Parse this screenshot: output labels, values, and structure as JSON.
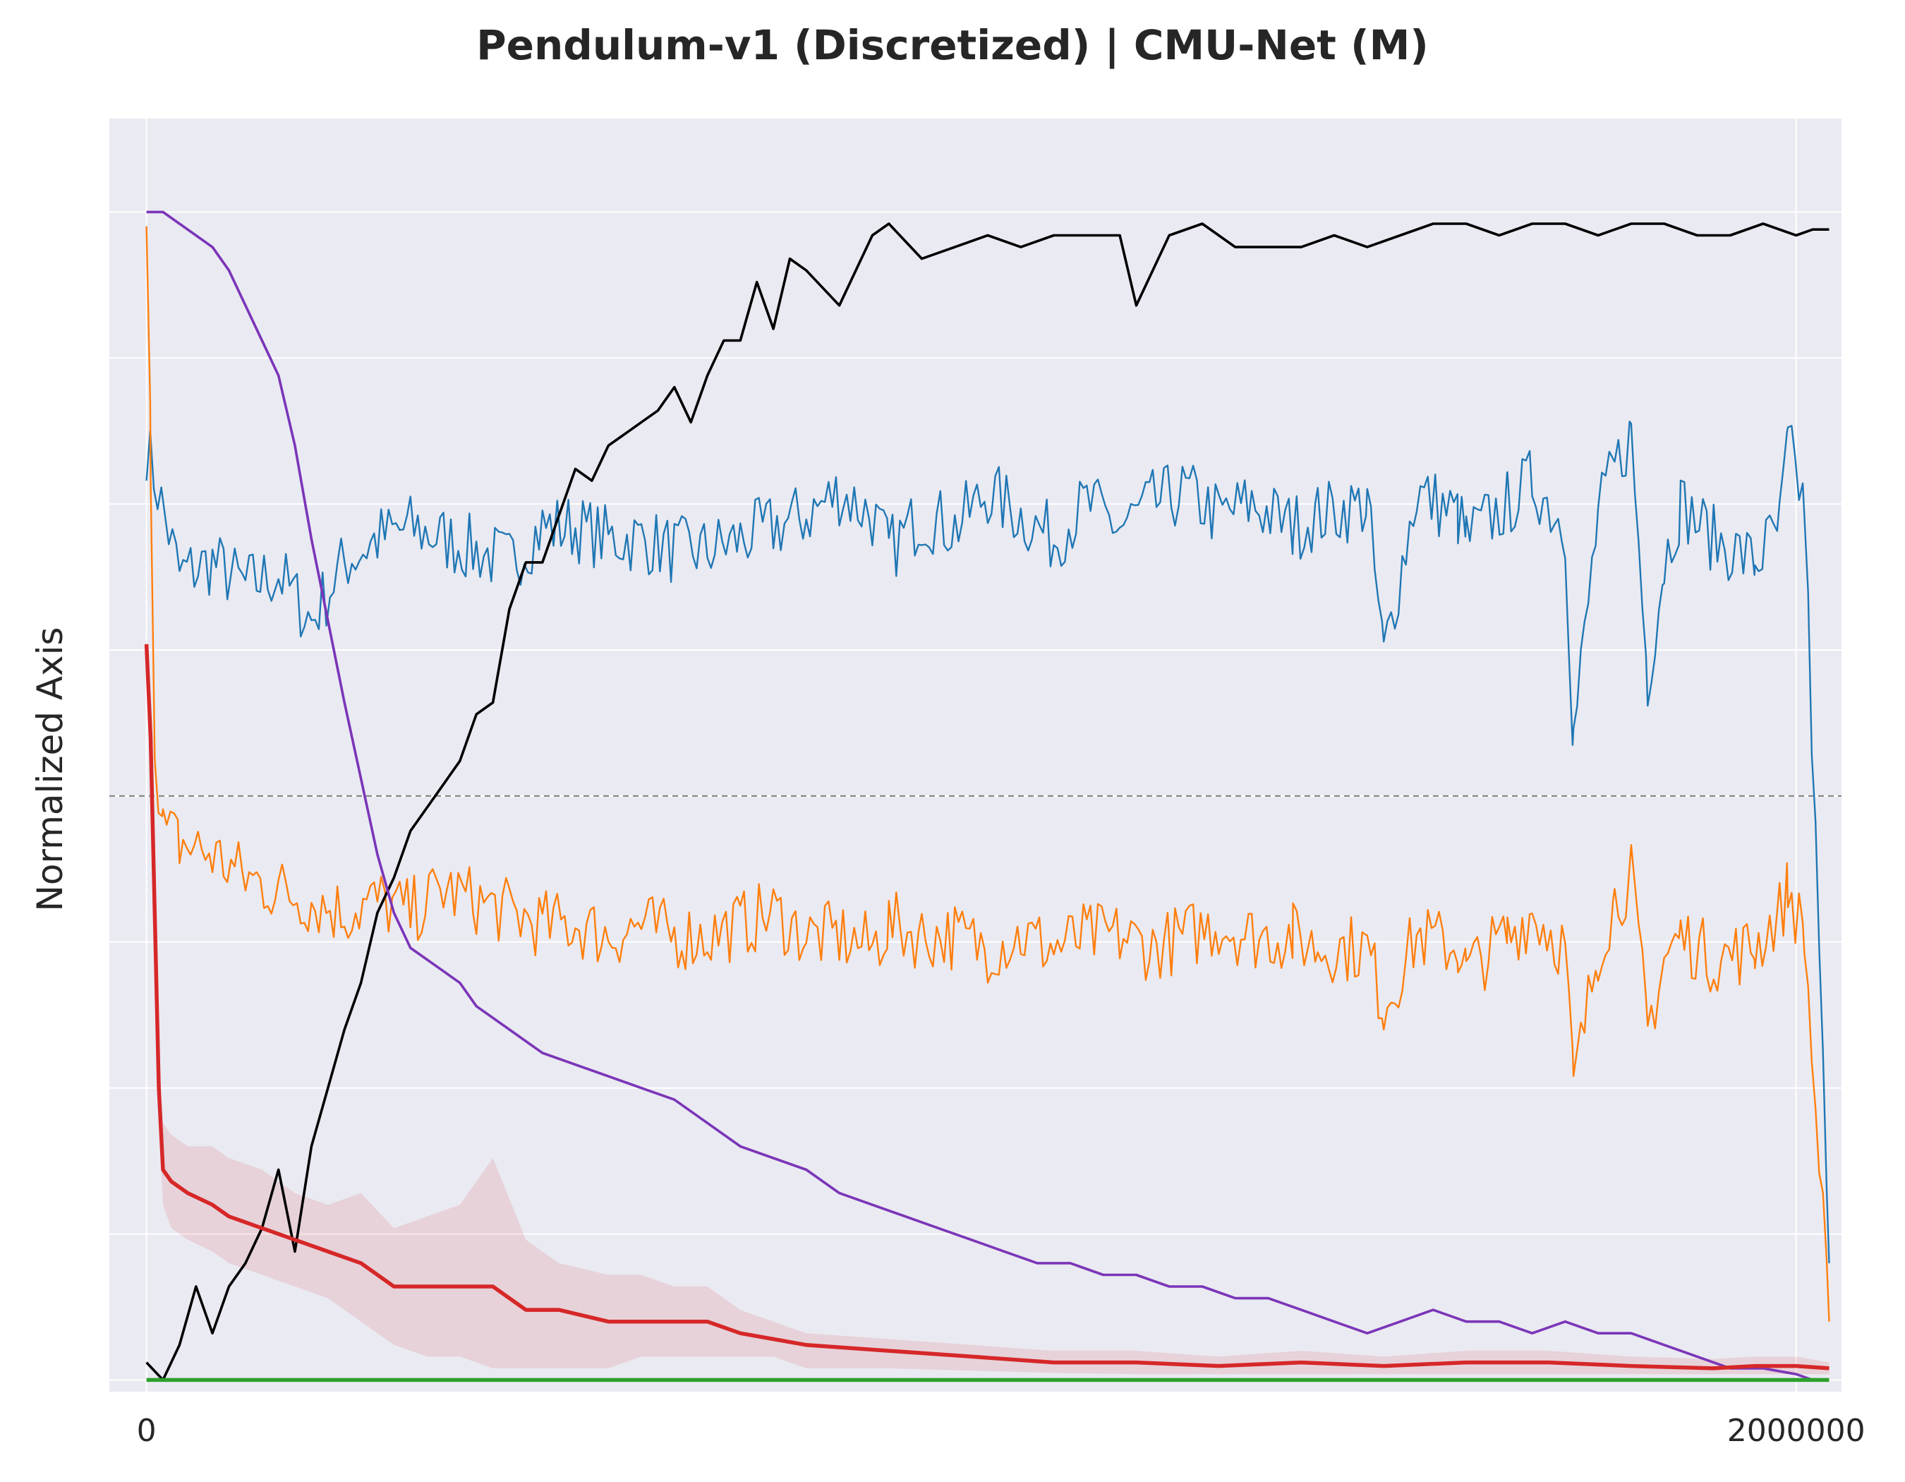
{
  "chart_data": {
    "type": "line",
    "title": "Pendulum-v1 (Discretized) | CMU-Net (M)",
    "xlabel": "",
    "ylabel": "Normalized Axis",
    "xlim": [
      -45000,
      2055000
    ],
    "ylim": [
      -0.01,
      1.08
    ],
    "x_ticks": [
      0,
      2000000
    ],
    "x_tick_labels": [
      "0",
      "2000000"
    ],
    "y_gridlines": [
      0.0,
      0.125,
      0.25,
      0.375,
      0.5,
      0.625,
      0.75,
      0.875,
      1.0
    ],
    "reference_line": {
      "y": 0.5,
      "style": "dashed",
      "color": "#808080"
    },
    "grid": true,
    "background": "#eaeaf2",
    "series": [
      {
        "color": "#1f77b4",
        "style": "thin-noisy",
        "x": [
          0,
          40000,
          80000,
          120000,
          160000,
          200000,
          240000,
          280000,
          320000,
          360000,
          400000,
          440000,
          480000,
          520000,
          560000,
          600000,
          640000,
          680000,
          720000,
          760000,
          800000,
          840000,
          880000,
          900000,
          940000,
          980000,
          1020000,
          1060000,
          1100000,
          1140000,
          1180000,
          1220000,
          1260000,
          1300000,
          1340000,
          1390000,
          1420000,
          1480000,
          1500000,
          1540000,
          1590000,
          1600000,
          1650000,
          1680000,
          1720000,
          1730000,
          1760000,
          1780000,
          1800000,
          1820000,
          1840000,
          1860000,
          1900000,
          1950000,
          1980000,
          1990000,
          2010000,
          2040000
        ],
        "y": [
          0.8,
          0.69,
          0.7,
          0.68,
          0.69,
          0.65,
          0.7,
          0.72,
          0.73,
          0.72,
          0.71,
          0.7,
          0.73,
          0.73,
          0.72,
          0.72,
          0.71,
          0.71,
          0.72,
          0.73,
          0.74,
          0.76,
          0.74,
          0.71,
          0.74,
          0.73,
          0.76,
          0.74,
          0.72,
          0.75,
          0.73,
          0.75,
          0.76,
          0.74,
          0.75,
          0.73,
          0.74,
          0.75,
          0.62,
          0.76,
          0.74,
          0.72,
          0.75,
          0.77,
          0.73,
          0.55,
          0.74,
          0.78,
          0.81,
          0.6,
          0.7,
          0.75,
          0.72,
          0.7,
          0.73,
          0.8,
          0.75,
          0.1
        ]
      },
      {
        "color": "#ff7f0e",
        "style": "thin-noisy",
        "x": [
          0,
          5000,
          10000,
          20000,
          40000,
          80000,
          120000,
          160000,
          200000,
          240000,
          280000,
          320000,
          360000,
          400000,
          440000,
          480000,
          520000,
          560000,
          600000,
          640000,
          680000,
          720000,
          760000,
          800000,
          840000,
          880000,
          900000,
          940000,
          980000,
          1020000,
          1060000,
          1100000,
          1140000,
          1180000,
          1220000,
          1260000,
          1300000,
          1340000,
          1390000,
          1420000,
          1480000,
          1500000,
          1540000,
          1590000,
          1600000,
          1650000,
          1680000,
          1720000,
          1730000,
          1760000,
          1780000,
          1800000,
          1820000,
          1840000,
          1860000,
          1900000,
          1950000,
          1980000,
          1990000,
          2010000,
          2040000
        ],
        "y": [
          0.97,
          0.8,
          0.55,
          0.47,
          0.46,
          0.45,
          0.43,
          0.42,
          0.41,
          0.4,
          0.41,
          0.4,
          0.42,
          0.41,
          0.4,
          0.39,
          0.39,
          0.38,
          0.39,
          0.38,
          0.38,
          0.39,
          0.4,
          0.38,
          0.38,
          0.37,
          0.39,
          0.38,
          0.38,
          0.37,
          0.38,
          0.37,
          0.38,
          0.38,
          0.37,
          0.38,
          0.39,
          0.38,
          0.38,
          0.37,
          0.37,
          0.32,
          0.38,
          0.37,
          0.35,
          0.38,
          0.4,
          0.37,
          0.25,
          0.37,
          0.41,
          0.43,
          0.3,
          0.36,
          0.38,
          0.36,
          0.37,
          0.4,
          0.42,
          0.38,
          0.05
        ]
      },
      {
        "color": "#000000",
        "style": "line",
        "x": [
          0,
          20000,
          40000,
          60000,
          80000,
          100000,
          120000,
          140000,
          160000,
          180000,
          200000,
          220000,
          240000,
          260000,
          280000,
          300000,
          320000,
          340000,
          360000,
          380000,
          400000,
          420000,
          440000,
          460000,
          480000,
          500000,
          520000,
          540000,
          560000,
          580000,
          600000,
          620000,
          640000,
          660000,
          680000,
          700000,
          720000,
          740000,
          760000,
          780000,
          800000,
          840000,
          880000,
          900000,
          940000,
          980000,
          1020000,
          1060000,
          1100000,
          1140000,
          1180000,
          1200000,
          1240000,
          1280000,
          1320000,
          1360000,
          1400000,
          1440000,
          1480000,
          1520000,
          1560000,
          1600000,
          1640000,
          1680000,
          1720000,
          1760000,
          1800000,
          1840000,
          1880000,
          1920000,
          1960000,
          2000000,
          2020000,
          2040000
        ],
        "y": [
          0.015,
          0.0,
          0.03,
          0.08,
          0.04,
          0.08,
          0.1,
          0.13,
          0.18,
          0.11,
          0.2,
          0.25,
          0.3,
          0.34,
          0.4,
          0.43,
          0.47,
          0.49,
          0.51,
          0.53,
          0.57,
          0.58,
          0.66,
          0.7,
          0.7,
          0.74,
          0.78,
          0.77,
          0.8,
          0.81,
          0.82,
          0.83,
          0.85,
          0.82,
          0.86,
          0.89,
          0.89,
          0.94,
          0.9,
          0.96,
          0.95,
          0.92,
          0.98,
          0.99,
          0.96,
          0.97,
          0.98,
          0.97,
          0.98,
          0.98,
          0.98,
          0.92,
          0.98,
          0.99,
          0.97,
          0.97,
          0.97,
          0.98,
          0.97,
          0.98,
          0.99,
          0.99,
          0.98,
          0.99,
          0.99,
          0.98,
          0.99,
          0.99,
          0.98,
          0.98,
          0.99,
          0.98,
          0.985,
          0.985
        ]
      },
      {
        "color": "#7b35b8",
        "style": "line",
        "x": [
          0,
          20000,
          40000,
          80000,
          100000,
          120000,
          160000,
          180000,
          200000,
          240000,
          280000,
          300000,
          320000,
          360000,
          380000,
          400000,
          440000,
          480000,
          520000,
          560000,
          600000,
          640000,
          680000,
          720000,
          760000,
          800000,
          840000,
          880000,
          920000,
          960000,
          1000000,
          1040000,
          1080000,
          1120000,
          1160000,
          1200000,
          1240000,
          1280000,
          1320000,
          1360000,
          1400000,
          1440000,
          1480000,
          1520000,
          1560000,
          1600000,
          1640000,
          1680000,
          1720000,
          1760000,
          1800000,
          1840000,
          1880000,
          1920000,
          1960000,
          2000000,
          2020000
        ],
        "y": [
          1.0,
          1.0,
          0.99,
          0.97,
          0.95,
          0.92,
          0.86,
          0.8,
          0.72,
          0.58,
          0.45,
          0.4,
          0.37,
          0.35,
          0.34,
          0.32,
          0.3,
          0.28,
          0.27,
          0.26,
          0.25,
          0.24,
          0.22,
          0.2,
          0.19,
          0.18,
          0.16,
          0.15,
          0.14,
          0.13,
          0.12,
          0.11,
          0.1,
          0.1,
          0.09,
          0.09,
          0.08,
          0.08,
          0.07,
          0.07,
          0.06,
          0.05,
          0.04,
          0.05,
          0.06,
          0.05,
          0.05,
          0.04,
          0.05,
          0.04,
          0.04,
          0.03,
          0.02,
          0.01,
          0.01,
          0.005,
          0.0
        ]
      },
      {
        "color": "#d62728",
        "style": "thick-with-band",
        "band_color": "#d62728",
        "x": [
          0,
          5000,
          10000,
          15000,
          20000,
          30000,
          50000,
          80000,
          100000,
          140000,
          180000,
          220000,
          260000,
          300000,
          340000,
          380000,
          420000,
          460000,
          500000,
          560000,
          600000,
          640000,
          680000,
          720000,
          760000,
          800000,
          900000,
          1000000,
          1100000,
          1200000,
          1300000,
          1400000,
          1500000,
          1600000,
          1700000,
          1800000,
          1900000,
          1950000,
          2000000,
          2040000
        ],
        "y": [
          0.63,
          0.55,
          0.4,
          0.25,
          0.18,
          0.17,
          0.16,
          0.15,
          0.14,
          0.13,
          0.12,
          0.11,
          0.1,
          0.08,
          0.08,
          0.08,
          0.08,
          0.06,
          0.06,
          0.05,
          0.05,
          0.05,
          0.05,
          0.04,
          0.035,
          0.03,
          0.025,
          0.02,
          0.015,
          0.015,
          0.012,
          0.015,
          0.012,
          0.015,
          0.015,
          0.012,
          0.01,
          0.012,
          0.012,
          0.01
        ],
        "band_low": [
          0.63,
          0.54,
          0.38,
          0.22,
          0.15,
          0.13,
          0.12,
          0.11,
          0.1,
          0.09,
          0.08,
          0.07,
          0.05,
          0.03,
          0.02,
          0.02,
          0.01,
          0.01,
          0.01,
          0.01,
          0.02,
          0.02,
          0.02,
          0.02,
          0.02,
          0.01,
          0.01,
          0.008,
          0.006,
          0.005,
          0.005,
          0.005,
          0.005,
          0.005,
          0.005,
          0.005,
          0.005,
          0.005,
          0.005,
          0.005
        ],
        "band_high": [
          0.63,
          0.56,
          0.42,
          0.28,
          0.22,
          0.21,
          0.2,
          0.2,
          0.19,
          0.18,
          0.16,
          0.15,
          0.16,
          0.13,
          0.14,
          0.15,
          0.19,
          0.12,
          0.1,
          0.09,
          0.09,
          0.08,
          0.08,
          0.06,
          0.05,
          0.04,
          0.035,
          0.03,
          0.025,
          0.025,
          0.02,
          0.025,
          0.02,
          0.025,
          0.025,
          0.02,
          0.018,
          0.02,
          0.02,
          0.015
        ]
      },
      {
        "color": "#2ca02c",
        "style": "thick",
        "x": [
          0,
          2040000
        ],
        "y": [
          0.0,
          0.0
        ]
      }
    ]
  }
}
